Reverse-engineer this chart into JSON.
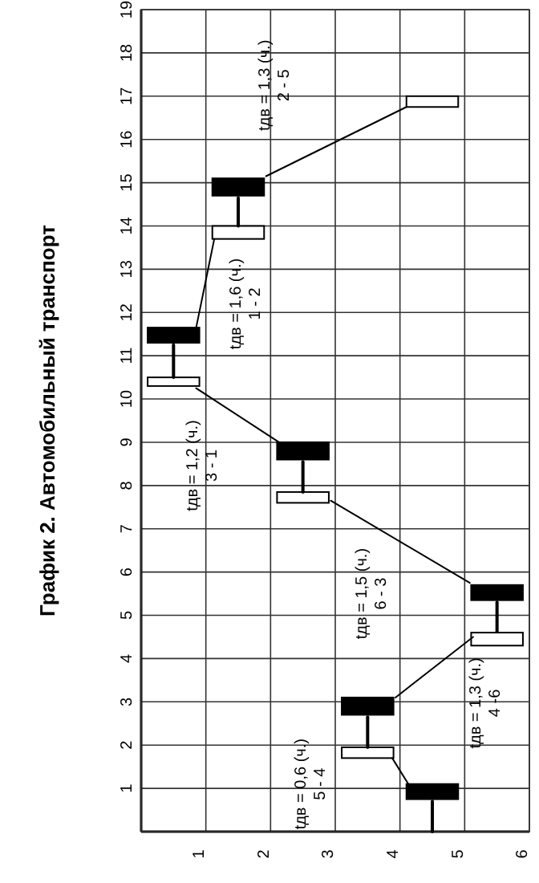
{
  "chart_data": {
    "type": "bar",
    "title": "График 2. Автомобильный транспорт",
    "xlim": [
      0,
      6
    ],
    "xticks": [
      1,
      2,
      3,
      4,
      5,
      6
    ],
    "ylim": [
      0,
      19
    ],
    "yticks": [
      1,
      2,
      3,
      4,
      5,
      6,
      7,
      8,
      9,
      10,
      11,
      12,
      13,
      14,
      15,
      16,
      17,
      18,
      19
    ],
    "grid": true,
    "series": [
      {
        "color": "#000000",
        "x": [
          0.5,
          1.5,
          2.5,
          3.5,
          4.5,
          5.5
        ],
        "base": [
          11.3,
          14.7,
          8.6,
          2.7,
          0.75,
          5.35
        ],
        "values": [
          0.35,
          0.4,
          0.4,
          0.4,
          0.35,
          0.35
        ]
      },
      {
        "color": "#ffffff",
        "x": [
          0.5,
          1.5,
          2.5,
          3.5,
          4.5,
          5.5
        ],
        "base": [
          10.3,
          13.7,
          7.6,
          1.7,
          16.75,
          4.3
        ],
        "values": [
          0.2,
          0.3,
          0.25,
          0.25,
          0.25,
          0.3
        ]
      },
      {
        "type": "line",
        "color": "#000000",
        "line_style": "solid",
        "x": [
          0.5,
          0.5
        ],
        "values": [
          10.5,
          11.25
        ]
      },
      {
        "type": "line",
        "color": "#000000",
        "line_style": "solid",
        "x": [
          1.5,
          1.5
        ],
        "values": [
          14.0,
          14.65
        ]
      },
      {
        "type": "line",
        "color": "#000000",
        "line_style": "solid",
        "x": [
          2.5,
          2.5
        ],
        "values": [
          7.85,
          8.55
        ]
      },
      {
        "type": "line",
        "color": "#000000",
        "line_style": "solid",
        "x": [
          3.5,
          3.5
        ],
        "values": [
          1.95,
          2.65
        ]
      },
      {
        "type": "line",
        "color": "#000000",
        "line_style": "solid",
        "x": [
          4.5,
          4.5
        ],
        "values": [
          0,
          0.7
        ]
      },
      {
        "type": "line",
        "color": "#000000",
        "line_style": "solid",
        "x": [
          5.5,
          5.5
        ],
        "values": [
          4.63,
          5.3
        ]
      },
      {
        "type": "line",
        "color": "#000000",
        "line_style": "solid",
        "x": [
          3.88,
          4.13
        ],
        "values": [
          1.7,
          1.1
        ]
      },
      {
        "type": "line",
        "color": "#000000",
        "line_style": "solid",
        "x": [
          3.93,
          5.13
        ],
        "values": [
          3.1,
          4.5
        ]
      },
      {
        "type": "line",
        "color": "#000000",
        "line_style": "solid",
        "x": [
          2.93,
          5.08
        ],
        "values": [
          7.65,
          5.75
        ]
      },
      {
        "type": "line",
        "color": "#000000",
        "line_style": "solid",
        "x": [
          0.85,
          2.13
        ],
        "values": [
          10.25,
          9.0
        ]
      },
      {
        "type": "line",
        "color": "#000000",
        "line_style": "solid",
        "x": [
          0.85,
          1.13
        ],
        "values": [
          11.65,
          13.7
        ]
      },
      {
        "type": "line",
        "color": "#000000",
        "line_style": "solid",
        "x": [
          1.93,
          4.1
        ],
        "values": [
          15.15,
          16.75
        ]
      }
    ],
    "annotations": [
      "tдв = 1,3 (ч.)\n2 - 5",
      "tдв = 1,6 (ч.)\n1 - 2",
      "tдв = 1,2 (ч.)\n3 - 1",
      "tдв = 1,5 (ч.)\n6 - 3",
      "tдв = 0,6 (ч.)\n5 - 4",
      "tдв = 1,3 (ч.)\n4 -6"
    ]
  }
}
